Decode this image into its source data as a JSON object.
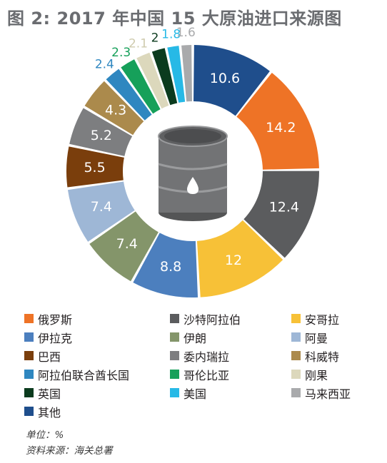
{
  "title": "图 2: 2017 年中国 15 大原油进口来源图",
  "unit_note": "单位：%",
  "source_note": "资料来源：海关总署",
  "chart_data": {
    "type": "pie",
    "variant": "donut",
    "start": "top, clockwise",
    "center_icon": "oil-barrel",
    "legend_position": "bottom",
    "slices": [
      {
        "value": 10.6,
        "label": "10.6",
        "legend_index": 15,
        "color": "#1f4e8c",
        "label_color": "#ffffff"
      },
      {
        "value": 14.2,
        "label": "14.2",
        "legend_index": 0,
        "color": "#ee7326",
        "label_color": "#ffffff"
      },
      {
        "value": 12.4,
        "label": "12.4",
        "legend_index": 1,
        "color": "#5b5c5e",
        "label_color": "#ffffff"
      },
      {
        "value": 12,
        "label": "12",
        "legend_index": 2,
        "color": "#f7c137",
        "label_color": "#ffffff"
      },
      {
        "value": 8.8,
        "label": "8.8",
        "legend_index": 3,
        "color": "#4c7fbe",
        "label_color": "#ffffff"
      },
      {
        "value": 7.4,
        "label": "7.4",
        "legend_index": 4,
        "color": "#84956a",
        "label_color": "#ffffff"
      },
      {
        "value": 7.4,
        "label": "7.4",
        "legend_index": 5,
        "color": "#9eb7d6",
        "label_color": "#ffffff"
      },
      {
        "value": 5.5,
        "label": "5.5",
        "legend_index": 6,
        "color": "#7a3e0c",
        "label_color": "#ffffff"
      },
      {
        "value": 5.2,
        "label": "5.2",
        "legend_index": 7,
        "color": "#7d7e80",
        "label_color": "#ffffff"
      },
      {
        "value": 4.3,
        "label": "4.3",
        "legend_index": 8,
        "color": "#ab8a4c",
        "label_color": "#ffffff"
      },
      {
        "value": 2.4,
        "label": "2.4",
        "legend_index": 9,
        "color": "#2f87c0",
        "label_color": "#2f87c0"
      },
      {
        "value": 2.3,
        "label": "2.3",
        "legend_index": 10,
        "color": "#16a05a",
        "label_color": "#16a05a"
      },
      {
        "value": 2.1,
        "label": "2.1",
        "legend_index": 11,
        "color": "#dcd8bc",
        "label_color": "#cfcbae"
      },
      {
        "value": 2,
        "label": "2",
        "legend_index": 12,
        "color": "#0b3b1e",
        "label_color": "#0b3b1e"
      },
      {
        "value": 1.8,
        "label": "1.8",
        "legend_index": 13,
        "color": "#27b9e6",
        "label_color": "#27b9e6"
      },
      {
        "value": 1.6,
        "label": "1.6",
        "legend_index": 14,
        "color": "#a9aaac",
        "label_color": "#a9aaac"
      }
    ],
    "legend": [
      {
        "label": "俄罗斯",
        "color": "#ee7326"
      },
      {
        "label": "沙特阿拉伯",
        "color": "#5b5c5e"
      },
      {
        "label": "安哥拉",
        "color": "#f7c137"
      },
      {
        "label": "伊拉克",
        "color": "#4c7fbe"
      },
      {
        "label": "伊朗",
        "color": "#84956a"
      },
      {
        "label": "阿曼",
        "color": "#9eb7d6"
      },
      {
        "label": "巴西",
        "color": "#7a3e0c"
      },
      {
        "label": "委内瑞拉",
        "color": "#7d7e80"
      },
      {
        "label": "科威特",
        "color": "#ab8a4c"
      },
      {
        "label": "阿拉伯联合酋长国",
        "color": "#2f87c0"
      },
      {
        "label": "哥伦比亚",
        "color": "#16a05a"
      },
      {
        "label": "刚果",
        "color": "#dcd8bc"
      },
      {
        "label": "英国",
        "color": "#0b3b1e"
      },
      {
        "label": "美国",
        "color": "#27b9e6"
      },
      {
        "label": "马来西亚",
        "color": "#a9aaac"
      },
      {
        "label": "其他",
        "color": "#1f4e8c"
      }
    ]
  }
}
